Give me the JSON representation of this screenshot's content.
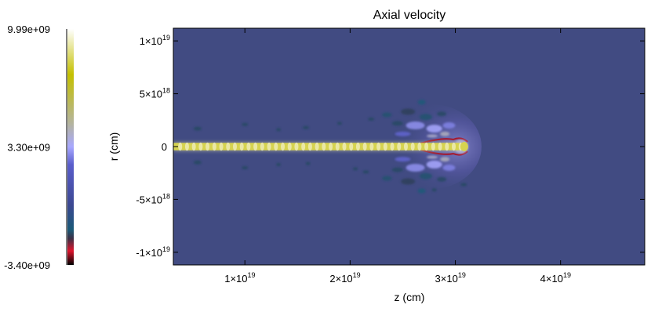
{
  "chart_data": {
    "type": "heatmap",
    "title": "Axial velocity",
    "xlabel": "z (cm)",
    "ylabel": "r (cm)",
    "xlim": [
      3.2e+18,
      4.8e+19
    ],
    "ylim": [
      -1.12e+19,
      1.12e+19
    ],
    "x_ticks": [
      {
        "value": 1e+19,
        "mantissa": "1",
        "exp": "19"
      },
      {
        "value": 2e+19,
        "mantissa": "2",
        "exp": "19"
      },
      {
        "value": 3e+19,
        "mantissa": "3",
        "exp": "19"
      },
      {
        "value": 4e+19,
        "mantissa": "4",
        "exp": "19"
      }
    ],
    "y_ticks": [
      {
        "value": 1e+19,
        "mantissa": "1",
        "exp": "19"
      },
      {
        "value": 5e+18,
        "mantissa": "5",
        "exp": "18"
      },
      {
        "value": 0,
        "mantissa": "0",
        "exp": ""
      },
      {
        "value": -5e+18,
        "mantissa": "-5",
        "exp": "18"
      },
      {
        "value": -1e+19,
        "mantissa": "-1",
        "exp": "19"
      }
    ],
    "tick_multiplier": "×10",
    "background_color": "#414b82",
    "colorbar": {
      "min": -3400000000.0,
      "max": 9990000000.0,
      "labels": [
        "9.99e+09",
        "3.30e+09",
        "-3.40e+09"
      ],
      "label_values": [
        9990000000.0,
        3300000000.0,
        -3400000000.0
      ],
      "stops": [
        {
          "value": -3400000000.0,
          "color": "#000000"
        },
        {
          "value": -2600000000.0,
          "color": "#e0142c"
        },
        {
          "value": -1900000000.0,
          "color": "#3c3046"
        },
        {
          "value": -1400000000.0,
          "color": "#1a5a78"
        },
        {
          "value": 0.0,
          "color": "#3c4892"
        },
        {
          "value": 2300000000.0,
          "color": "#5a5ecc"
        },
        {
          "value": 3300000000.0,
          "color": "#a8a8ff"
        },
        {
          "value": 4600000000.0,
          "color": "#b4b4a0"
        },
        {
          "value": 7400000000.0,
          "color": "#c4c000"
        },
        {
          "value": 9990000000.0,
          "color": "#ffffff"
        }
      ]
    },
    "jet": {
      "z_start": 3.2e+18,
      "z_head": 3.1e+19,
      "radius": 3.5e+17,
      "core_value": 8200000000.0,
      "knot_spacing": 6.5e+17
    },
    "cocoon": {
      "z_start": 2.3e+19,
      "z_end": 3.1e+19,
      "half_width_max": 4e+18
    },
    "bow_shock_value": -2800000000.0
  }
}
